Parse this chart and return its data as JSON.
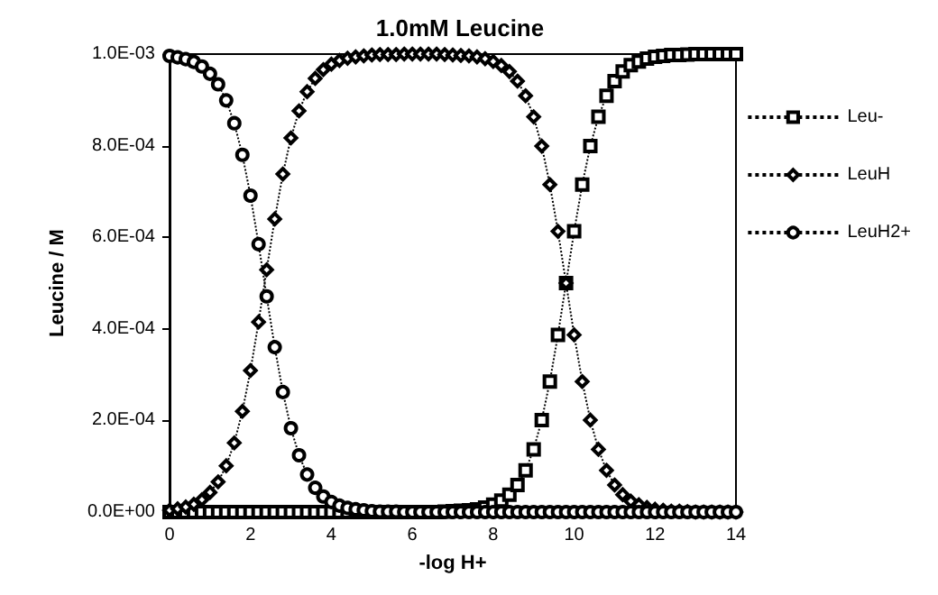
{
  "chart_data": {
    "type": "line",
    "title": "1.0mM Leucine",
    "xlabel": "-log H+",
    "ylabel": "Leucine / M",
    "x": [
      0,
      0.2,
      0.4,
      0.6,
      0.8,
      1,
      1.2,
      1.4,
      1.6,
      1.8,
      2,
      2.2,
      2.4,
      2.6,
      2.8,
      3,
      3.2,
      3.4,
      3.6,
      3.8,
      4,
      4.2,
      4.4,
      4.6,
      4.8,
      5,
      5.2,
      5.4,
      5.6,
      5.8,
      6,
      6.2,
      6.4,
      6.6,
      6.8,
      7,
      7.2,
      7.4,
      7.6,
      7.8,
      8,
      8.2,
      8.4,
      8.6,
      8.8,
      9,
      9.2,
      9.4,
      9.6,
      9.8,
      10,
      10.2,
      10.4,
      10.6,
      10.8,
      11,
      11.2,
      11.4,
      11.6,
      11.8,
      12,
      12.2,
      12.4,
      12.6,
      12.8,
      13,
      13.2,
      13.4,
      13.6,
      13.8,
      14
    ],
    "series": [
      {
        "name": "Leu-",
        "color": "#000000",
        "marker": "square",
        "values": [
          0,
          0,
          0,
          0,
          0,
          0,
          0,
          0,
          0,
          0,
          0,
          0,
          0,
          0,
          0,
          0,
          0,
          0,
          0,
          0,
          0,
          0,
          0,
          0,
          0,
          0,
          0,
          0,
          0,
          0,
          0,
          0,
          0,
          0,
          1e-06,
          2e-06,
          3e-06,
          4e-06,
          6e-06,
          1e-05,
          1.6e-05,
          2.5e-05,
          3.8e-05,
          5.9e-05,
          9.1e-05,
          0.000137,
          0.000201,
          0.000285,
          0.000387,
          0.0005,
          0.000613,
          0.000715,
          0.000799,
          0.000863,
          0.000909,
          0.000941,
          0.000962,
          0.000976,
          0.000984,
          0.00099,
          0.000994,
          0.000996,
          0.000998,
          0.000998,
          0.000999,
          0.001,
          0.001,
          0.001,
          0.001,
          0.001,
          0.001
        ]
      },
      {
        "name": "LeuH",
        "color": "#000000",
        "marker": "diamond",
        "values": [
          4e-06,
          7e-06,
          1.1e-05,
          1.7e-05,
          2.7e-05,
          4.3e-05,
          6.6e-05,
          0.000101,
          0.000151,
          0.00022,
          0.000309,
          0.000415,
          0.000529,
          0.00064,
          0.000738,
          0.000817,
          0.000876,
          0.000918,
          0.000947,
          0.000966,
          0.000978,
          0.000986,
          0.000991,
          0.000994,
          0.000996,
          0.000998,
          0.000999,
          0.000999,
          0.000999,
          0.001,
          0.001,
          0.001,
          0.001,
          0.001,
          0.000999,
          0.000998,
          0.000997,
          0.000996,
          0.000994,
          0.00099,
          0.000984,
          0.000975,
          0.000962,
          0.000941,
          0.000909,
          0.000863,
          0.000799,
          0.000715,
          0.000613,
          0.0005,
          0.000387,
          0.000285,
          0.000201,
          0.000137,
          9.1e-05,
          5.9e-05,
          3.8e-05,
          2.4e-05,
          1.6e-05,
          1e-05,
          6e-06,
          4e-06,
          2e-06,
          2e-06,
          1e-06,
          0,
          0,
          0,
          0,
          0,
          0
        ]
      },
      {
        "name": "LeuH2+",
        "color": "#000000",
        "marker": "circle",
        "values": [
          0.000996,
          0.000993,
          0.000989,
          0.000983,
          0.000973,
          0.000957,
          0.000934,
          0.000899,
          0.000849,
          0.00078,
          0.000691,
          0.000585,
          0.000471,
          0.00036,
          0.000262,
          0.000183,
          0.000124,
          8.2e-05,
          5.3e-05,
          3.4e-05,
          2.2e-05,
          1.4e-05,
          9e-06,
          6e-06,
          4e-06,
          2e-06,
          1e-06,
          1e-06,
          1e-06,
          0,
          0,
          0,
          0,
          0,
          0,
          0,
          0,
          0,
          0,
          0,
          0,
          0,
          0,
          0,
          0,
          0,
          0,
          0,
          0,
          0,
          0,
          0,
          0,
          0,
          0,
          0,
          0,
          0,
          0,
          0,
          0,
          0,
          0,
          0,
          0,
          0,
          0,
          0,
          0,
          0,
          0
        ]
      }
    ],
    "xlim": [
      0,
      14
    ],
    "xticks": [
      0,
      2,
      4,
      6,
      8,
      10,
      12,
      14
    ],
    "ylim": [
      0,
      0.001
    ],
    "yticks": [
      {
        "value": 0,
        "label": "0.0E+00"
      },
      {
        "value": 0.0002,
        "label": "2.0E-04"
      },
      {
        "value": 0.0004,
        "label": "4.0E-04"
      },
      {
        "value": 0.0006,
        "label": "6.0E-04"
      },
      {
        "value": 0.0008,
        "label": "8.0E-04"
      },
      {
        "value": 0.001,
        "label": "1.0E-03"
      }
    ],
    "grid": false,
    "legend": "right",
    "line_style": "dotted"
  }
}
